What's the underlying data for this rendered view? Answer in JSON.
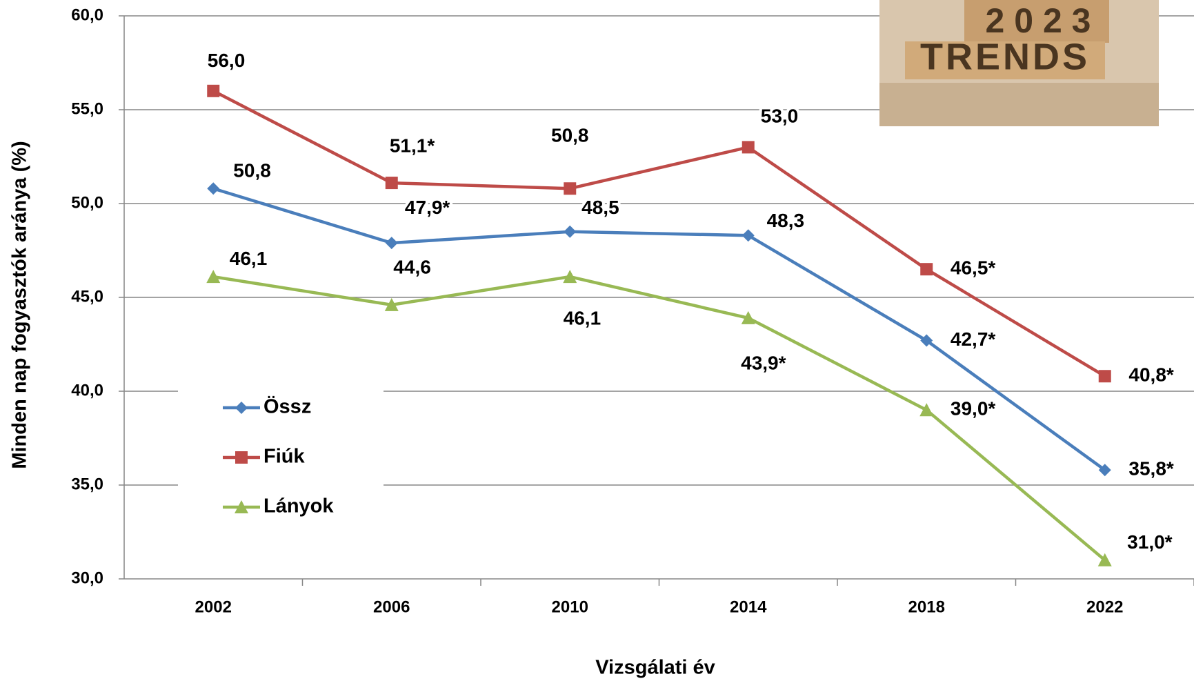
{
  "chart_data": {
    "type": "line",
    "y_label": "Minden nap fogyasztók aránya (%)",
    "x_label": "Vizsgálati év",
    "categories": [
      "2002",
      "2006",
      "2010",
      "2014",
      "2018",
      "2022"
    ],
    "series": [
      {
        "name": "Össz",
        "color": "#4a7ebb",
        "marker": "diamond",
        "values": [
          50.8,
          47.9,
          48.5,
          48.3,
          42.7,
          35.8
        ],
        "value_labels": [
          "50,8",
          "47,9*",
          "48,5",
          "48,3",
          "42,7*",
          "35,8*"
        ]
      },
      {
        "name": "Fiúk",
        "color": "#be4b48",
        "marker": "square",
        "values": [
          56.0,
          51.1,
          50.8,
          53.0,
          46.5,
          40.8
        ],
        "value_labels": [
          "56,0",
          "51,1*",
          "50,8",
          "53,0",
          "46,5*",
          "40,8*"
        ]
      },
      {
        "name": "Lányok",
        "color": "#98b954",
        "marker": "triangle",
        "values": [
          46.1,
          44.6,
          46.1,
          43.9,
          39.0,
          31.0
        ],
        "value_labels": [
          "46,1",
          "44,6",
          "46,1",
          "43,9*",
          "39,0*",
          "31,0*"
        ]
      }
    ],
    "ylim": [
      30,
      60
    ],
    "yticks": [
      {
        "value": 30,
        "label": "30,0"
      },
      {
        "value": 35,
        "label": "35,0"
      },
      {
        "value": 40,
        "label": "40,0"
      },
      {
        "value": 45,
        "label": "45,0"
      },
      {
        "value": 50,
        "label": "50,0"
      },
      {
        "value": 55,
        "label": "55,0"
      },
      {
        "value": 60,
        "label": "60,0"
      }
    ],
    "grid": true,
    "legend": "left",
    "inset_image": {
      "lines": [
        "2 0 2 3",
        "TRENDS"
      ]
    }
  }
}
